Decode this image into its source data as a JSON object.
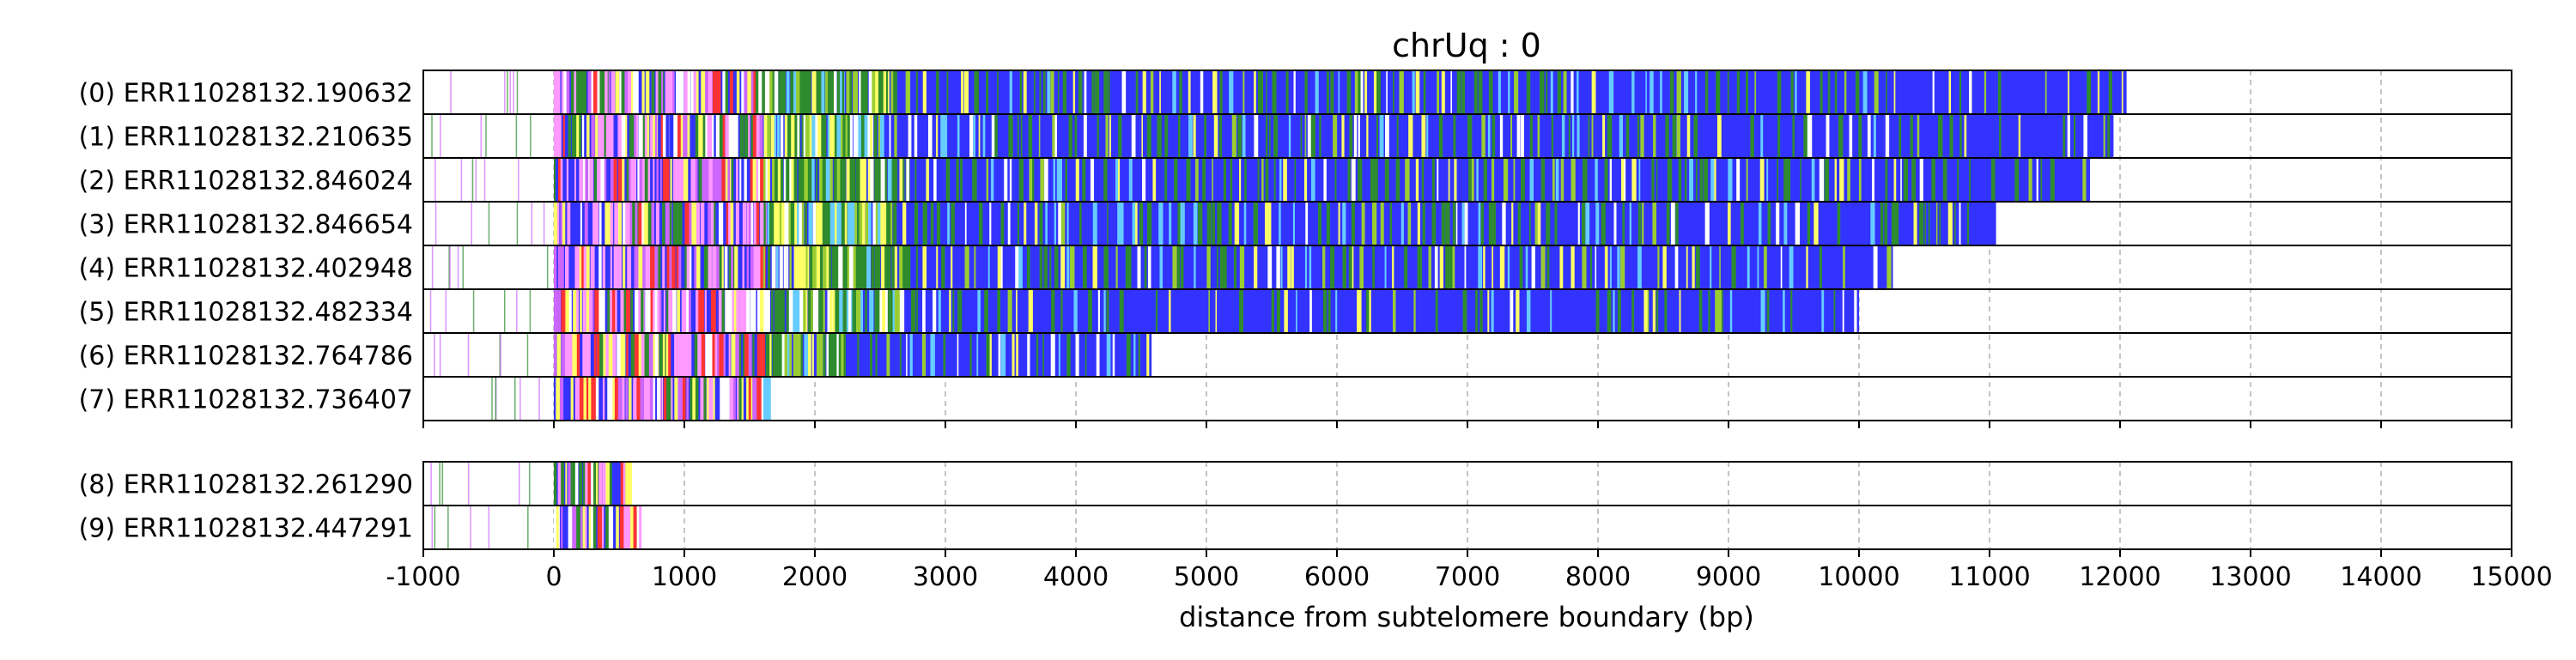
{
  "chart_data": {
    "type": "bar",
    "title": "chrUq : 0",
    "xlabel": "distance from subtelomere boundary (bp)",
    "ylabel": "",
    "xlim": [
      -1000,
      15000
    ],
    "xticks": [
      "-1000",
      "0",
      "1000",
      "2000",
      "3000",
      "4000",
      "5000",
      "6000",
      "7000",
      "8000",
      "9000",
      "10000",
      "11000",
      "12000",
      "13000",
      "14000",
      "15000"
    ],
    "xtick_values": [
      -1000,
      0,
      1000,
      2000,
      3000,
      4000,
      5000,
      6000,
      7000,
      8000,
      9000,
      10000,
      11000,
      12000,
      13000,
      14000,
      15000
    ],
    "grid": "vertical dashed",
    "colors": {
      "blue": "#3333ff",
      "green": "#2e8b2e",
      "yellow": "#ffff66",
      "lightgreen": "#9acd32",
      "red": "#ff3333",
      "pink": "#ff99ff",
      "violet": "#cc66ff",
      "cyan": "#66ccff",
      "white": "#ffffff",
      "frame": "#000000",
      "grid": "#b0b0b0"
    },
    "panels": [
      {
        "reads": [
          {
            "label": "(0) ERR11028132.190632",
            "end": 12050,
            "dense_end": 2600,
            "block_end": 7900
          },
          {
            "label": "(1) ERR11028132.210635",
            "end": 11950,
            "dense_end": 2500,
            "block_end": 8400
          },
          {
            "label": "(2) ERR11028132.846024",
            "end": 11770,
            "dense_end": 2700,
            "block_end": 10900
          },
          {
            "label": "(3) ERR11028132.846654",
            "end": 11050,
            "dense_end": 2600,
            "block_end": 7700
          },
          {
            "label": "(4) ERR11028132.402948",
            "end": 10260,
            "dense_end": 2700,
            "block_end": 7800
          },
          {
            "label": "(5) ERR11028132.482334",
            "end": 10000,
            "dense_end": 2650,
            "block_end": 3100
          },
          {
            "label": "(6) ERR11028132.764786",
            "end": 4580,
            "dense_end": 2200,
            "block_end": 4580
          },
          {
            "label": "(7) ERR11028132.736407",
            "end": 1650,
            "dense_end": 1650,
            "block_end": 1650
          }
        ]
      },
      {
        "reads": [
          {
            "label": "(8) ERR11028132.261290",
            "end": 560,
            "dense_end": 560,
            "block_end": 560
          },
          {
            "label": "(9) ERR11028132.447291",
            "end": 700,
            "dense_end": 700,
            "block_end": 700
          }
        ]
      }
    ]
  }
}
